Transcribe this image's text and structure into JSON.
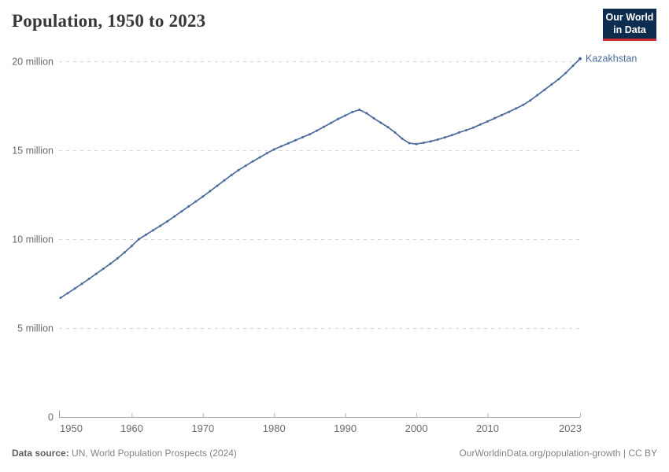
{
  "header": {
    "title": "Population, 1950 to 2023"
  },
  "logo": {
    "line1": "Our World",
    "line2": "in Data",
    "bg_color": "#0d2d4e",
    "accent_color": "#cf2d32"
  },
  "footer": {
    "source_label": "Data source:",
    "source_text": " UN, World Population Prospects (2024)",
    "link_text": "OurWorldinData.org/population-growth | CC BY"
  },
  "chart_data": {
    "type": "line",
    "title": "Population, 1950 to 2023",
    "entity": "Kazakhstan",
    "unit": "million people",
    "grid": "horizontal dashed",
    "legend_position": "end-of-line label",
    "line_color": "#4C6A9C",
    "xlabel": "",
    "ylabel": "",
    "xlim": [
      1950,
      2023
    ],
    "ylim": [
      0,
      20.5
    ],
    "xticks": [
      1950,
      1960,
      1970,
      1980,
      1990,
      2000,
      2010,
      2023
    ],
    "yticks": [
      0,
      5,
      10,
      15,
      20
    ],
    "ytick_labels": [
      "0",
      "5 million",
      "10 million",
      "15 million",
      "20 million"
    ],
    "x": [
      1950,
      1951,
      1952,
      1953,
      1954,
      1955,
      1956,
      1957,
      1958,
      1959,
      1960,
      1961,
      1962,
      1963,
      1964,
      1965,
      1966,
      1967,
      1968,
      1969,
      1970,
      1971,
      1972,
      1973,
      1974,
      1975,
      1976,
      1977,
      1978,
      1979,
      1980,
      1981,
      1982,
      1983,
      1984,
      1985,
      1986,
      1987,
      1988,
      1989,
      1990,
      1991,
      1992,
      1993,
      1994,
      1995,
      1996,
      1997,
      1998,
      1999,
      2000,
      2001,
      2002,
      2003,
      2004,
      2005,
      2006,
      2007,
      2008,
      2009,
      2010,
      2011,
      2012,
      2013,
      2014,
      2015,
      2016,
      2017,
      2018,
      2019,
      2020,
      2021,
      2022,
      2023
    ],
    "series": [
      {
        "name": "Kazakhstan",
        "color": "#4C6A9C",
        "values": [
          6.7,
          6.96,
          7.22,
          7.49,
          7.77,
          8.05,
          8.33,
          8.62,
          8.92,
          9.26,
          9.62,
          10.0,
          10.25,
          10.5,
          10.75,
          11.0,
          11.28,
          11.56,
          11.84,
          12.12,
          12.4,
          12.7,
          13.0,
          13.3,
          13.6,
          13.88,
          14.13,
          14.37,
          14.6,
          14.83,
          15.05,
          15.22,
          15.39,
          15.56,
          15.73,
          15.9,
          16.1,
          16.32,
          16.54,
          16.76,
          16.95,
          17.15,
          17.28,
          17.08,
          16.8,
          16.55,
          16.3,
          16.0,
          15.65,
          15.4,
          15.35,
          15.42,
          15.5,
          15.6,
          15.72,
          15.85,
          16.0,
          16.13,
          16.27,
          16.45,
          16.62,
          16.8,
          16.98,
          17.16,
          17.35,
          17.55,
          17.8,
          18.1,
          18.4,
          18.7,
          19.0,
          19.35,
          19.75,
          20.15
        ]
      }
    ]
  },
  "style": {
    "grid_color": "#d6d6d6",
    "axis_color": "#a0a0a0",
    "tick_color": "#b3b3b3",
    "label_color": "#6b6b6b",
    "title_color": "#383838"
  }
}
